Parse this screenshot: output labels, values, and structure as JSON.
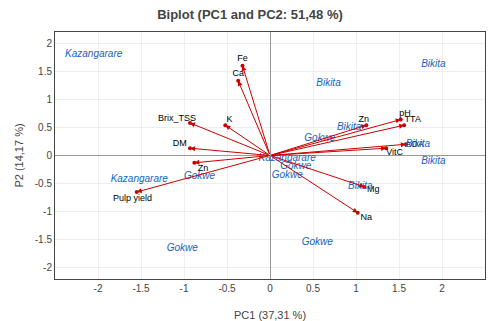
{
  "chart_data": {
    "type": "biplot",
    "title": "Biplot (PC1 and PC2: 51,48 %)",
    "xlabel": "PC1 (37,31 %)",
    "ylabel": "P2 (14,17 %)",
    "xlim": [
      -2.5,
      2.5
    ],
    "ylim": [
      -2.2,
      2.2
    ],
    "xticks": [
      -2,
      -1.5,
      -1,
      -0.5,
      0,
      0.5,
      1,
      1.5,
      2
    ],
    "yticks": [
      -2,
      -1.5,
      -1,
      -0.5,
      0,
      0.5,
      1,
      1.5,
      2
    ],
    "arrows": {
      "color": "#CC0000",
      "points": [
        {
          "label": "Fe",
          "x": -0.32,
          "y": 1.6,
          "label_dx": 0.0,
          "label_dy": 0.12
        },
        {
          "label": "Ca",
          "x": -0.37,
          "y": 1.33,
          "label_dx": 0.0,
          "label_dy": 0.12
        },
        {
          "label": "K",
          "x": -0.52,
          "y": 0.54,
          "label_dx": 0.05,
          "label_dy": 0.1
        },
        {
          "label": "Brix_TSS",
          "x": -0.93,
          "y": 0.58,
          "label_dx": -0.15,
          "label_dy": 0.08
        },
        {
          "label": "DM",
          "x": -0.93,
          "y": 0.13,
          "label_dx": -0.12,
          "label_dy": 0.08
        },
        {
          "label": "Zn",
          "x": -0.88,
          "y": -0.13,
          "label_dx": 0.1,
          "label_dy": -0.1
        },
        {
          "label": "Pulp yield",
          "x": -1.55,
          "y": -0.65,
          "label_dx": -0.05,
          "label_dy": -0.12
        },
        {
          "label": "pH",
          "x": 1.52,
          "y": 0.64,
          "label_dx": 0.05,
          "label_dy": 0.1
        },
        {
          "label": "TTA",
          "x": 1.56,
          "y": 0.54,
          "label_dx": 0.1,
          "label_dy": 0.1
        },
        {
          "label": "AOA",
          "x": 1.58,
          "y": 0.2,
          "label_dx": 0.1,
          "label_dy": 0.0
        },
        {
          "label": "VitC",
          "x": 1.35,
          "y": 0.13,
          "label_dx": 0.1,
          "label_dy": -0.08
        },
        {
          "label": "Zn",
          "x": 1.12,
          "y": 0.54,
          "label_dx": -0.03,
          "label_dy": 0.1
        },
        {
          "label": "Mg",
          "x": 1.1,
          "y": -0.56,
          "label_dx": 0.1,
          "label_dy": -0.05
        },
        {
          "label": "Na",
          "x": 1.02,
          "y": -1.02,
          "label_dx": 0.1,
          "label_dy": -0.08
        }
      ]
    },
    "scores": {
      "color": "#1565C0",
      "points": [
        {
          "label": "Kazangarare",
          "x": -2.05,
          "y": 1.8
        },
        {
          "label": "Bikita",
          "x": 0.68,
          "y": 1.28
        },
        {
          "label": "Bikita",
          "x": 1.9,
          "y": 1.62
        },
        {
          "label": "Kazangarare",
          "x": -1.52,
          "y": -0.42
        },
        {
          "label": "Gokwe",
          "x": -0.82,
          "y": -0.38
        },
        {
          "label": "Gokwe",
          "x": 0.58,
          "y": 0.3
        },
        {
          "label": "Kazangarare",
          "x": 0.2,
          "y": -0.05
        },
        {
          "label": "Gokwe",
          "x": 0.3,
          "y": -0.2
        },
        {
          "label": "Bikita",
          "x": 0.92,
          "y": 0.5
        },
        {
          "label": "Bikita",
          "x": 1.72,
          "y": 0.2
        },
        {
          "label": "Bikita",
          "x": 1.9,
          "y": -0.1
        },
        {
          "label": "Bikita",
          "x": 1.05,
          "y": -0.55
        },
        {
          "label": "Gokwe",
          "x": -1.02,
          "y": -1.65
        },
        {
          "label": "Gokwe",
          "x": 0.55,
          "y": -1.55
        },
        {
          "label": "Gokwe",
          "x": 0.2,
          "y": -0.35
        }
      ]
    }
  }
}
